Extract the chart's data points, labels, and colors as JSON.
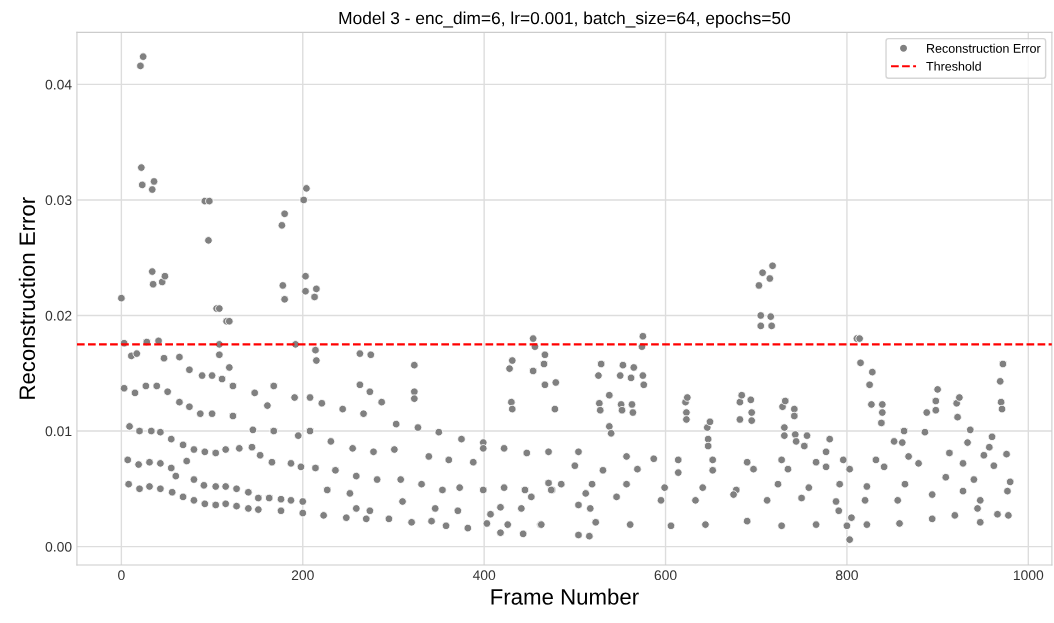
{
  "chart_data": {
    "type": "scatter",
    "title": "Model 3 - enc_dim=6, lr=0.001, batch_size=64, epochs=50",
    "xlabel": "Frame Number",
    "ylabel": "Reconstruction Error",
    "xlim": [
      -49,
      1026
    ],
    "ylim": [
      -0.0016,
      0.0445
    ],
    "xticks": [
      0,
      200,
      400,
      600,
      800,
      1000
    ],
    "yticks": [
      {
        "value": 0,
        "label": "0.00"
      },
      0.01,
      0.02,
      0.03,
      0.04
    ],
    "grid": true,
    "legend": "top right",
    "marker": "circle",
    "series": [
      {
        "name": "Reconstruction Error",
        "color": "#808080",
        "x": [
          0,
          21,
          24,
          22,
          23,
          34,
          36,
          34,
          35,
          45,
          48,
          92,
          97,
          96,
          105,
          108,
          116,
          119,
          177,
          180,
          178,
          180,
          201,
          204,
          203,
          203,
          213,
          215,
          703,
          707,
          715,
          718,
          705,
          705,
          716,
          717,
          575,
          811,
          814,
          3,
          11,
          17,
          28,
          41,
          47,
          64,
          75,
          89,
          100,
          111,
          123,
          108,
          119,
          108,
          147,
          168,
          161,
          191,
          208,
          214,
          215,
          192,
          221,
          244,
          263,
          275,
          263,
          274,
          287,
          267,
          303,
          323,
          323,
          323,
          327,
          350,
          375,
          399,
          428,
          431,
          430,
          431,
          454,
          456,
          454,
          467,
          466,
          467,
          479,
          478,
          3,
          15,
          27,
          39,
          51,
          64,
          75,
          87,
          100,
          123,
          145,
          168,
          195,
          208,
          231,
          255,
          278,
          301,
          339,
          361,
          388,
          399,
          422,
          447,
          471,
          9,
          20,
          33,
          43,
          55,
          68,
          80,
          92,
          104,
          115,
          130,
          144,
          153,
          166,
          187,
          198,
          214,
          236,
          259,
          282,
          308,
          331,
          354,
          373,
          399,
          422,
          445,
          471,
          7,
          19,
          31,
          43,
          55,
          60,
          72,
          80,
          91,
          104,
          115,
          127,
          140,
          151,
          163,
          176,
          187,
          200,
          227,
          252,
          259,
          274,
          310,
          346,
          371,
          407,
          418,
          441,
          452,
          475,
          8,
          20,
          31,
          43,
          56,
          68,
          80,
          92,
          104,
          115,
          127,
          140,
          151,
          176,
          200,
          223,
          248,
          270,
          295,
          320,
          342,
          358,
          382,
          403,
          418,
          426,
          443,
          462,
          526,
          529,
          527,
          528,
          538,
          538,
          540,
          550,
          553,
          551,
          552,
          562,
          565,
          563,
          564,
          575,
          576,
          574,
          622,
          624,
          623,
          623,
          646,
          649,
          647,
          647,
          682,
          684,
          682,
          694,
          695,
          695,
          729,
          732,
          731,
          731,
          742,
          742,
          743,
          744,
          756,
          753,
          781,
          777,
          815,
          828,
          825,
          827,
          839,
          839,
          838,
          852,
          861,
          863,
          886,
          888,
          898,
          898,
          900,
          921,
          924,
          922,
          936,
          933,
          960,
          957,
          972,
          969,
          970,
          971,
          614,
          652,
          690,
          728,
          766,
          796,
          832,
          868,
          913,
          951,
          976,
          504,
          557,
          587,
          500,
          531,
          569,
          614,
          652,
          697,
          735,
          777,
          803,
          841,
          879,
          928,
          962,
          485,
          519,
          557,
          599,
          641,
          678,
          724,
          758,
          792,
          822,
          864,
          909,
          940,
          980,
          474,
          512,
          546,
          595,
          633,
          675,
          712,
          750,
          788,
          791,
          820,
          856,
          894,
          928,
          947,
          977,
          463,
          504,
          517,
          504,
          516,
          523,
          561,
          606,
          644,
          690,
          728,
          766,
          800,
          803,
          805,
          822,
          858,
          894,
          919,
          944,
          947,
          966,
          978
        ],
        "values": [
          0.0215,
          0.0416,
          0.0424,
          0.0328,
          0.0313,
          0.0309,
          0.0316,
          0.0238,
          0.0227,
          0.0229,
          0.0234,
          0.0299,
          0.0299,
          0.0265,
          0.0206,
          0.0206,
          0.0195,
          0.0195,
          0.0278,
          0.0288,
          0.0226,
          0.0214,
          0.03,
          0.031,
          0.0234,
          0.0221,
          0.0216,
          0.0223,
          0.0226,
          0.0237,
          0.0232,
          0.0243,
          0.02,
          0.0191,
          0.0199,
          0.0191,
          0.0182,
          0.018,
          0.018,
          0.0176,
          0.0165,
          0.0167,
          0.0177,
          0.0178,
          0.0163,
          0.0164,
          0.0153,
          0.0148,
          0.0148,
          0.0145,
          0.0139,
          0.0166,
          0.0155,
          0.0175,
          0.0133,
          0.0139,
          0.0122,
          0.0129,
          0.0129,
          0.017,
          0.0161,
          0.0175,
          0.0124,
          0.0119,
          0.0167,
          0.0166,
          0.014,
          0.0134,
          0.0125,
          0.0115,
          0.0106,
          0.0157,
          0.0134,
          0.0128,
          0.0103,
          0.0099,
          0.0093,
          0.009,
          0.0154,
          0.0161,
          0.0125,
          0.0119,
          0.018,
          0.0173,
          0.0152,
          0.0166,
          0.0158,
          0.014,
          0.0142,
          0.0119,
          0.0137,
          0.0133,
          0.0139,
          0.0139,
          0.0134,
          0.0125,
          0.0121,
          0.0115,
          0.0115,
          0.0113,
          0.0101,
          0.01,
          0.0096,
          0.01,
          0.0091,
          0.0085,
          0.0082,
          0.0084,
          0.0078,
          0.0075,
          0.0073,
          0.0085,
          0.0085,
          0.0081,
          0.0082,
          0.0104,
          0.01,
          0.01,
          0.0099,
          0.0093,
          0.0088,
          0.0084,
          0.0082,
          0.0081,
          0.0084,
          0.0085,
          0.0086,
          0.0079,
          0.0073,
          0.0072,
          0.0069,
          0.0068,
          0.0066,
          0.0061,
          0.0058,
          0.0058,
          0.0054,
          0.0049,
          0.0051,
          0.0049,
          0.0051,
          0.0049,
          0.0055,
          0.0075,
          0.0071,
          0.0073,
          0.0072,
          0.0068,
          0.0061,
          0.0074,
          0.0058,
          0.0053,
          0.0052,
          0.0052,
          0.005,
          0.0047,
          0.0042,
          0.0042,
          0.0041,
          0.004,
          0.0039,
          0.0049,
          0.0046,
          0.0033,
          0.0031,
          0.0039,
          0.0033,
          0.0031,
          0.0028,
          0.0034,
          0.0033,
          0.0043,
          0.0049,
          0.0054,
          0.005,
          0.0052,
          0.005,
          0.0047,
          0.0043,
          0.004,
          0.0037,
          0.0036,
          0.0037,
          0.0035,
          0.0033,
          0.0032,
          0.0031,
          0.0029,
          0.0027,
          0.0025,
          0.0024,
          0.0024,
          0.0021,
          0.0022,
          0.0018,
          0.0016,
          0.002,
          0.0012,
          0.0019,
          0.0011,
          0.0019,
          0.0148,
          0.0158,
          0.0124,
          0.0118,
          0.0131,
          0.0104,
          0.0098,
          0.0148,
          0.0157,
          0.0123,
          0.0118,
          0.0146,
          0.0155,
          0.0123,
          0.0116,
          0.0148,
          0.014,
          0.0173,
          0.0125,
          0.0129,
          0.0116,
          0.011,
          0.0103,
          0.0108,
          0.0093,
          0.0087,
          0.0125,
          0.0131,
          0.011,
          0.0127,
          0.0116,
          0.0109,
          0.0121,
          0.0126,
          0.0103,
          0.0096,
          0.0119,
          0.0113,
          0.0097,
          0.0091,
          0.0096,
          0.0087,
          0.0093,
          0.0082,
          0.0159,
          0.0151,
          0.014,
          0.0123,
          0.0123,
          0.0116,
          0.0107,
          0.0091,
          0.009,
          0.01,
          0.0099,
          0.0116,
          0.0118,
          0.0126,
          0.0136,
          0.0124,
          0.0129,
          0.0112,
          0.0101,
          0.009,
          0.0095,
          0.0086,
          0.0158,
          0.0143,
          0.0125,
          0.0119,
          0.0075,
          0.0075,
          0.0073,
          0.0075,
          0.0073,
          0.0075,
          0.0075,
          0.0078,
          0.0081,
          0.0079,
          0.008,
          0.0082,
          0.0078,
          0.0076,
          0.007,
          0.0066,
          0.0067,
          0.0064,
          0.0066,
          0.0067,
          0.0067,
          0.0069,
          0.0067,
          0.0069,
          0.0072,
          0.0072,
          0.007,
          0.0054,
          0.0054,
          0.0054,
          0.0051,
          0.0051,
          0.0049,
          0.0054,
          0.0051,
          0.0054,
          0.0052,
          0.0054,
          0.006,
          0.0058,
          0.0056,
          0.0049,
          0.0046,
          0.0043,
          0.004,
          0.004,
          0.0045,
          0.004,
          0.0042,
          0.0039,
          0.0031,
          0.004,
          0.004,
          0.0045,
          0.0048,
          0.004,
          0.0048,
          0.0019,
          0.0036,
          0.0033,
          0.001,
          0.0009,
          0.0021,
          0.0019,
          0.0018,
          0.0019,
          0.0022,
          0.0018,
          0.0019,
          0.0018,
          0.0006,
          0.0025,
          0.0019,
          0.002,
          0.0024,
          0.0027,
          0.0033,
          0.0021,
          0.0028,
          0.0027
        ]
      }
    ],
    "ref_lines": [
      {
        "axis": "y",
        "value": 0.0175,
        "label": "Threshold",
        "color": "#ff0000",
        "line_style": "dashed"
      }
    ]
  }
}
